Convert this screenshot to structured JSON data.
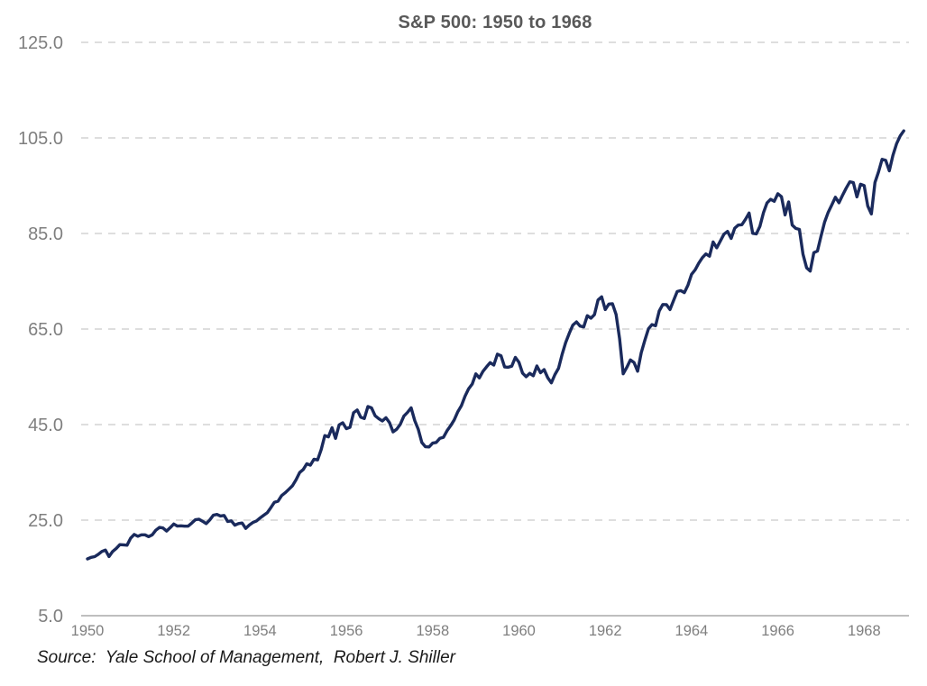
{
  "chart": {
    "title": "S&P 500: 1950 to 1968",
    "source_note": "Source:  Yale School of Management,  Robert J. Shiller"
  },
  "styles": {
    "line_color": "#1a2a5c",
    "grid_color": "#c9c9c9",
    "axis_line_color": "#bfbfbf",
    "title_text_color": "#595959",
    "tick_text_color": "#7f7f7f",
    "source_text_color": "#1a1a1a",
    "background": "#ffffff"
  },
  "chart_data": {
    "type": "line",
    "title": "S&P 500: 1950 to 1968",
    "xlabel": "",
    "ylabel": "",
    "grid": "horizontal-dashed",
    "legend": "none",
    "ylim": [
      5.0,
      125.0
    ],
    "xlim": [
      1949.9,
      1969.05
    ],
    "y_ticks": [
      {
        "value": 5.0,
        "label": "5.0"
      },
      {
        "value": 25.0,
        "label": "25.0"
      },
      {
        "value": 45.0,
        "label": "45.0"
      },
      {
        "value": 65.0,
        "label": "65.0"
      },
      {
        "value": 85.0,
        "label": "85.0"
      },
      {
        "value": 105.0,
        "label": "105.0"
      },
      {
        "value": 125.0,
        "label": "125.0"
      }
    ],
    "x_ticks": [
      {
        "value": 1950,
        "label": "1950"
      },
      {
        "value": 1952,
        "label": "1952"
      },
      {
        "value": 1954,
        "label": "1954"
      },
      {
        "value": 1956,
        "label": "1956"
      },
      {
        "value": 1958,
        "label": "1958"
      },
      {
        "value": 1960,
        "label": "1960"
      },
      {
        "value": 1962,
        "label": "1962"
      },
      {
        "value": 1964,
        "label": "1964"
      },
      {
        "value": 1966,
        "label": "1966"
      },
      {
        "value": 1968,
        "label": "1968"
      }
    ],
    "x_start_year": 1950,
    "x_frequency": "monthly",
    "series": [
      {
        "name": "S&P 500",
        "color": "#1a2a5c",
        "values": [
          16.88,
          17.21,
          17.35,
          17.84,
          18.44,
          18.74,
          17.38,
          18.43,
          19.08,
          19.87,
          19.83,
          19.75,
          21.21,
          22.0,
          21.63,
          21.92,
          21.93,
          21.55,
          21.93,
          22.89,
          23.48,
          23.36,
          22.71,
          23.41,
          24.19,
          23.75,
          23.81,
          23.74,
          23.73,
          24.38,
          25.08,
          25.18,
          24.78,
          24.26,
          25.03,
          26.04,
          26.18,
          25.86,
          25.99,
          24.71,
          24.84,
          23.95,
          24.29,
          24.39,
          23.27,
          23.97,
          24.5,
          24.83,
          25.46,
          26.02,
          26.57,
          27.63,
          28.73,
          28.96,
          30.13,
          30.73,
          31.45,
          32.18,
          33.44,
          34.97,
          35.6,
          36.79,
          36.5,
          37.76,
          37.6,
          39.78,
          42.69,
          42.43,
          44.34,
          42.11,
          44.95,
          45.37,
          44.15,
          44.43,
          47.49,
          48.05,
          46.54,
          46.27,
          48.78,
          48.49,
          46.84,
          46.24,
          45.76,
          46.44,
          45.43,
          43.47,
          44.03,
          45.05,
          46.78,
          47.55,
          48.51,
          45.84,
          43.98,
          41.24,
          40.35,
          40.33,
          41.12,
          41.26,
          42.11,
          42.34,
          43.7,
          44.75,
          45.98,
          47.7,
          48.96,
          50.95,
          52.5,
          53.49,
          55.62,
          54.77,
          56.15,
          57.1,
          57.96,
          57.46,
          59.74,
          59.4,
          57.05,
          57.0,
          57.23,
          59.06,
          58.03,
          55.78,
          55.02,
          55.73,
          55.22,
          57.26,
          55.84,
          56.51,
          54.81,
          53.73,
          55.47,
          56.8,
          59.72,
          62.17,
          64.12,
          65.83,
          66.5,
          65.62,
          65.44,
          67.79,
          67.26,
          68.0,
          71.08,
          71.74,
          69.07,
          70.22,
          70.29,
          68.05,
          62.99,
          55.63,
          56.97,
          58.52,
          58.0,
          56.17,
          60.04,
          62.64,
          65.06,
          65.92,
          65.67,
          68.76,
          70.14,
          70.11,
          69.07,
          70.98,
          72.85,
          73.03,
          72.62,
          74.17,
          76.45,
          77.39,
          78.8,
          79.94,
          80.72,
          80.24,
          83.22,
          82.0,
          83.41,
          84.85,
          85.44,
          83.96,
          86.12,
          86.75,
          86.83,
          87.97,
          89.28,
          85.04,
          84.91,
          86.49,
          89.38,
          91.39,
          92.15,
          91.73,
          93.32,
          92.69,
          88.88,
          91.6,
          86.78,
          86.06,
          85.84,
          80.65,
          77.81,
          77.13,
          80.99,
          81.33,
          84.45,
          87.36,
          89.42,
          90.96,
          92.59,
          91.43,
          93.01,
          94.49,
          95.81,
          95.66,
          92.66,
          95.3,
          95.04,
          90.75,
          89.09,
          95.67,
          97.87,
          100.53,
          100.3,
          98.11,
          101.34,
          103.76,
          105.4,
          106.48
        ]
      }
    ],
    "source": "Source:  Yale School of Management,  Robert J. Shiller"
  }
}
